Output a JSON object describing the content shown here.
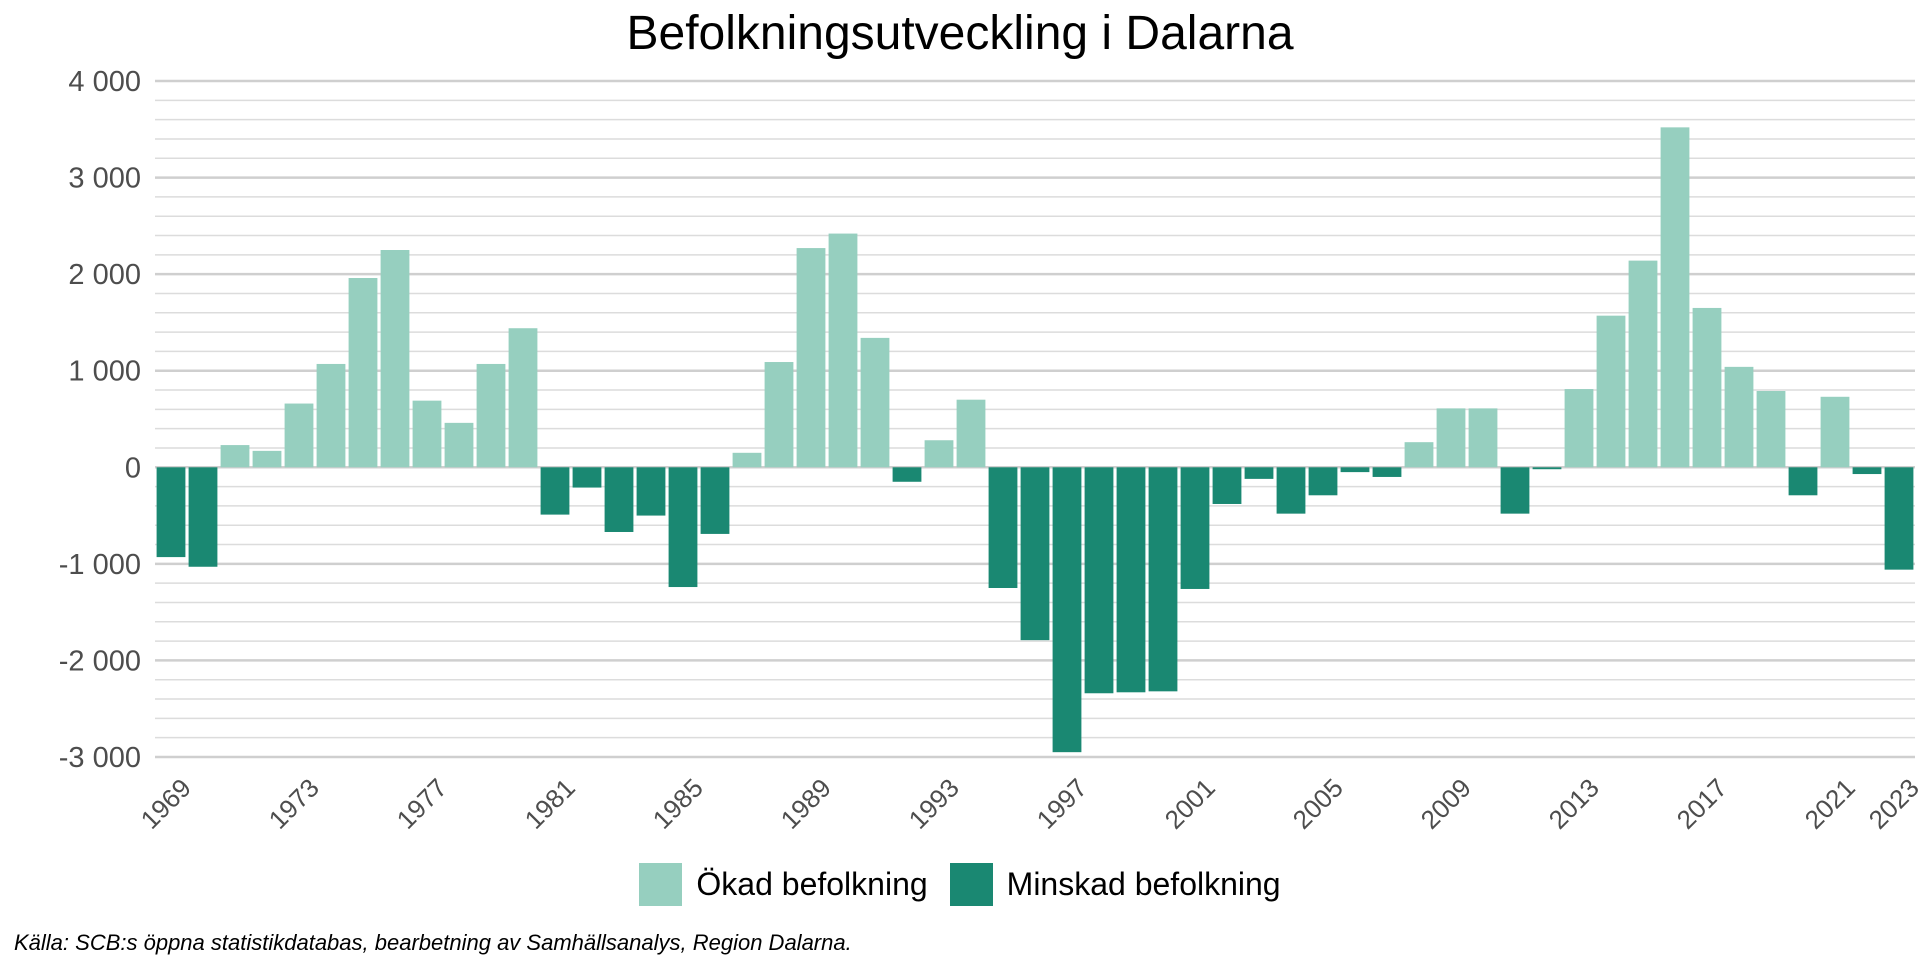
{
  "chart_data": {
    "type": "bar",
    "title": "Befolkningsutveckling i Dalarna",
    "xlabel": "",
    "ylabel": "",
    "ylim": [
      -3000,
      4000
    ],
    "yticks": [
      -3000,
      -2000,
      -1000,
      0,
      1000,
      2000,
      3000,
      4000
    ],
    "ytick_labels": [
      "-3 000",
      "-2 000",
      "-1 000",
      "0",
      "1 000",
      "2 000",
      "3 000",
      "4 000"
    ],
    "xtick_labels": [
      "1969",
      "1973",
      "1977",
      "1981",
      "1985",
      "1989",
      "1993",
      "1997",
      "2001",
      "2005",
      "2009",
      "2013",
      "2017",
      "2021",
      "2023"
    ],
    "grid": true,
    "legend_position": "bottom",
    "categories": [
      "1969",
      "1970",
      "1971",
      "1972",
      "1973",
      "1974",
      "1975",
      "1976",
      "1977",
      "1978",
      "1979",
      "1980",
      "1981",
      "1982",
      "1983",
      "1984",
      "1985",
      "1986",
      "1987",
      "1988",
      "1989",
      "1990",
      "1991",
      "1992",
      "1993",
      "1994",
      "1995",
      "1996",
      "1997",
      "1998",
      "1999",
      "2000",
      "2001",
      "2002",
      "2003",
      "2004",
      "2005",
      "2006",
      "2007",
      "2008",
      "2009",
      "2010",
      "2011",
      "2012",
      "2013",
      "2014",
      "2015",
      "2016",
      "2017",
      "2018",
      "2019",
      "2020",
      "2021",
      "2022",
      "2023"
    ],
    "values": [
      -930,
      -1030,
      230,
      170,
      660,
      1070,
      1960,
      2250,
      690,
      460,
      1070,
      1440,
      -490,
      -210,
      -670,
      -500,
      -1240,
      -690,
      150,
      1090,
      2270,
      2420,
      1340,
      -150,
      280,
      700,
      -1250,
      -1790,
      -2950,
      -2340,
      -2330,
      -2320,
      -1260,
      -380,
      -120,
      -480,
      -290,
      -50,
      -100,
      260,
      610,
      610,
      -480,
      -20,
      810,
      1570,
      2140,
      3520,
      1650,
      1040,
      790,
      -290,
      730,
      -70,
      -1060
    ],
    "series": [
      {
        "name": "Ökad befolkning",
        "color": "#96cfbf"
      },
      {
        "name": "Minskad befolkning",
        "color": "#1a8872"
      }
    ]
  },
  "source": "Källa: SCB:s öppna statistikdatabas, bearbetning av Samhällsanalys, Region Dalarna."
}
